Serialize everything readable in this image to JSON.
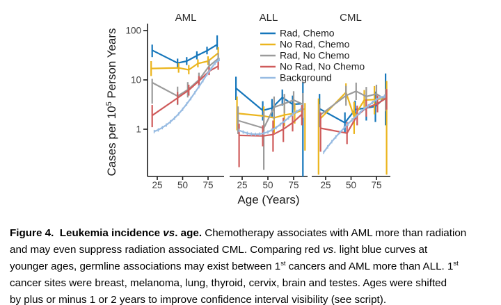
{
  "chart_data": {
    "type": "line",
    "title": "",
    "xlabel": "Age (Years)",
    "ylabel": "Cases per 10^5 Person Years",
    "ylabel_parts": [
      "Cases per 10",
      "5",
      " Person Years"
    ],
    "yscale": "log",
    "ylim": [
      0.11,
      130
    ],
    "yticks": [
      100,
      10,
      1
    ],
    "xticks": [
      25,
      50,
      75
    ],
    "grid": false,
    "legend_position": "top-center",
    "legend": [
      {
        "key": "rad_chemo",
        "label": "Rad, Chemo",
        "color": "#1576BB"
      },
      {
        "key": "no_rad_chemo",
        "label": "No Rad, Chemo",
        "color": "#EBB51E"
      },
      {
        "key": "rad_no_chemo",
        "label": "Rad, No Chemo",
        "color": "#9B9B9B"
      },
      {
        "key": "no_rad_no_chemo",
        "label": "No Rad, No Chemo",
        "color": "#CF5B5B"
      },
      {
        "key": "background",
        "label": "Background",
        "color": "#97BBE2"
      }
    ],
    "series_point_format": "[age, value, ci_low, ci_high] (cases per 100,000 person-years; log scale)",
    "panels": [
      {
        "title": "AML",
        "series": {
          "rad_chemo": [
            [
              20,
              40,
              29,
              52
            ],
            [
              45,
              22,
              18,
              27
            ],
            [
              54,
              24,
              20,
              29
            ],
            [
              64,
              31,
              26,
              38
            ],
            [
              74,
              39,
              33,
              47
            ],
            [
              84,
              52,
              41,
              80
            ]
          ],
          "no_rad_chemo": [
            [
              19,
              17,
              12,
              24
            ],
            [
              46,
              17.5,
              14,
              22
            ],
            [
              56,
              16,
              13,
              20
            ],
            [
              65,
              21.5,
              18,
              26
            ],
            [
              75,
              24,
              20,
              30
            ],
            [
              85,
              35,
              27,
              46
            ]
          ],
          "rad_no_chemo": [
            [
              20,
              8.8,
              3.3,
              10.5
            ],
            [
              45,
              4.7,
              3.1,
              7.3
            ],
            [
              55,
              6.3,
              4.4,
              9
            ],
            [
              66,
              10,
              7.3,
              14
            ],
            [
              76,
              19,
              14,
              25
            ],
            [
              85,
              27,
              20,
              35
            ]
          ],
          "no_rad_no_chemo": [
            [
              20,
              1.9,
              1.1,
              3.1
            ],
            [
              45,
              4.3,
              3.2,
              5.7
            ],
            [
              56,
              6.2,
              4.8,
              8
            ],
            [
              66,
              9.5,
              7.4,
              12
            ],
            [
              76,
              15,
              12.5,
              18
            ],
            [
              85,
              19,
              16,
              23
            ]
          ],
          "background": [
            [
              22,
              0.9
            ],
            [
              26,
              0.97
            ],
            [
              30,
              1.08
            ],
            [
              34,
              1.22
            ],
            [
              38,
              1.42
            ],
            [
              42,
              1.68
            ],
            [
              46,
              2.05
            ],
            [
              50,
              2.55
            ],
            [
              54,
              3.25
            ],
            [
              58,
              4.2
            ],
            [
              62,
              5.5
            ],
            [
              66,
              7.3
            ],
            [
              70,
              9.7
            ],
            [
              74,
              13
            ],
            [
              78,
              17
            ],
            [
              82,
              22
            ],
            [
              86,
              26
            ]
          ]
        }
      },
      {
        "title": "ALL",
        "series": {
          "rad_chemo": [
            [
              19,
              6.8,
              3.9,
              11.6
            ],
            [
              45,
              2.4,
              1.5,
              3.7
            ],
            [
              54,
              2.7,
              1.8,
              4.1
            ],
            [
              64,
              4.4,
              3.0,
              6.4
            ],
            [
              74,
              3.2,
              2.1,
              4.8
            ],
            [
              84,
              3.3,
              0.11,
              8.8
            ]
          ],
          "no_rad_chemo": [
            [
              20,
              2.1,
              0.95,
              4.6
            ],
            [
              46,
              1.85,
              0.9,
              2.9
            ],
            [
              56,
              1.7,
              0.85,
              3.3
            ],
            [
              66,
              1.95,
              1.15,
              3.3
            ],
            [
              76,
              2.1,
              1.3,
              3.4
            ],
            [
              86,
              2.6,
              0.37,
              3.4
            ]
          ],
          "rad_no_chemo": [
            [
              21,
              1.5,
              0.8,
              2.9
            ],
            [
              46,
              1.05,
              0.15,
              2.3
            ],
            [
              56,
              2.8,
              1.6,
              4.6
            ],
            [
              66,
              3.3,
              2.1,
              5.2
            ],
            [
              75,
              3.9,
              2.5,
              5.9
            ],
            [
              84,
              3.2,
              1.7,
              5.4
            ]
          ],
          "no_rad_no_chemo": [
            [
              22,
              0.75,
              0.17,
              1.3
            ],
            [
              45,
              0.73,
              0.45,
              1.2
            ],
            [
              55,
              0.78,
              0.35,
              1.5
            ],
            [
              65,
              1.0,
              0.55,
              1.7
            ],
            [
              74,
              1.35,
              0.9,
              2.0
            ],
            [
              83,
              2.0,
              1.2,
              3.1
            ]
          ],
          "background": [
            [
              22,
              0.95
            ],
            [
              26,
              0.88
            ],
            [
              30,
              0.83
            ],
            [
              34,
              0.8
            ],
            [
              38,
              0.79
            ],
            [
              42,
              0.8
            ],
            [
              46,
              0.83
            ],
            [
              50,
              0.88
            ],
            [
              54,
              0.97
            ],
            [
              58,
              1.08
            ],
            [
              62,
              1.25
            ],
            [
              66,
              1.45
            ],
            [
              70,
              1.7
            ],
            [
              74,
              2.0
            ],
            [
              78,
              2.3
            ],
            [
              82,
              2.55
            ]
          ]
        }
      },
      {
        "title": "CML",
        "series": {
          "rad_chemo": [
            [
              19,
              2.6,
              1.1,
              5.2
            ],
            [
              44,
              1.35,
              0.85,
              2.2
            ],
            [
              54,
              2.5,
              1.6,
              3.8
            ],
            [
              65,
              2.7,
              1.5,
              4.6
            ],
            [
              74,
              2.9,
              1.4,
              5.8
            ],
            [
              84,
              4.5,
              1.2,
              13.5
            ]
          ],
          "no_rad_chemo": [
            [
              18,
              1.5,
              0.12,
              4.2
            ],
            [
              45,
              5.6,
              3.6,
              8.5
            ],
            [
              53,
              1.8,
              0.8,
              3.6
            ],
            [
              63,
              3.9,
              2.4,
              6.2
            ],
            [
              73,
              4.0,
              2.0,
              7.5
            ],
            [
              85,
              4.2,
              0.12,
              9.5
            ]
          ],
          "rad_no_chemo": [
            [
              19,
              1.9,
              1.1,
              3.2
            ],
            [
              45,
              4.8,
              3.0,
              7.6
            ],
            [
              55,
              5.9,
              3.9,
              8.8
            ],
            [
              65,
              4.6,
              2.9,
              7.2
            ],
            [
              75,
              5.2,
              3.3,
              8.0
            ],
            [
              84,
              4.0,
              2.3,
              6.6
            ]
          ],
          "no_rad_no_chemo": [
            [
              20,
              1.05,
              0.35,
              2.2
            ],
            [
              46,
              0.83,
              0.5,
              1.4
            ],
            [
              56,
              1.9,
              1.2,
              3.0
            ],
            [
              65,
              2.7,
              1.8,
              4.0
            ],
            [
              76,
              3.3,
              2.2,
              4.8
            ],
            [
              85,
              4.3,
              2.5,
              6.5
            ]
          ],
          "background": [
            [
              23,
              0.34
            ],
            [
              27,
              0.44
            ],
            [
              31,
              0.56
            ],
            [
              35,
              0.7
            ],
            [
              39,
              0.86
            ],
            [
              43,
              1.05
            ],
            [
              47,
              1.28
            ],
            [
              51,
              1.55
            ],
            [
              55,
              1.85
            ],
            [
              59,
              2.2
            ],
            [
              63,
              2.6
            ],
            [
              67,
              3.0
            ],
            [
              71,
              3.5
            ],
            [
              75,
              4.0
            ],
            [
              79,
              4.4
            ],
            [
              83,
              4.7
            ]
          ]
        }
      }
    ]
  },
  "caption": {
    "lines": [
      {
        "runs": [
          {
            "t": "Figure 4.  Leukemia incidence ",
            "b": true
          },
          {
            "t": "vs",
            "b": true,
            "i": true
          },
          {
            "t": ". age.",
            "b": true
          },
          {
            "t": " Chemotherapy associates with AML more than radiation"
          }
        ]
      },
      {
        "runs": [
          {
            "t": "and may even suppress radiation associated CML. Comparing red "
          },
          {
            "t": "vs",
            "i": true
          },
          {
            "t": ". light blue curves at"
          }
        ]
      },
      {
        "runs": [
          {
            "t": "younger ages, germline associations may exist between 1"
          },
          {
            "t": "st",
            "sup": true
          },
          {
            "t": " cancers and AML more than ALL. 1"
          },
          {
            "t": "st",
            "sup": true
          }
        ]
      },
      {
        "runs": [
          {
            "t": "cancer sites were breast, melanoma, lung, thyroid, cervix, brain and testes. Ages were shifted"
          }
        ]
      },
      {
        "runs": [
          {
            "t": "by plus or minus 1 or 2 years to improve confidence interval visibility (see script)."
          }
        ]
      }
    ]
  }
}
